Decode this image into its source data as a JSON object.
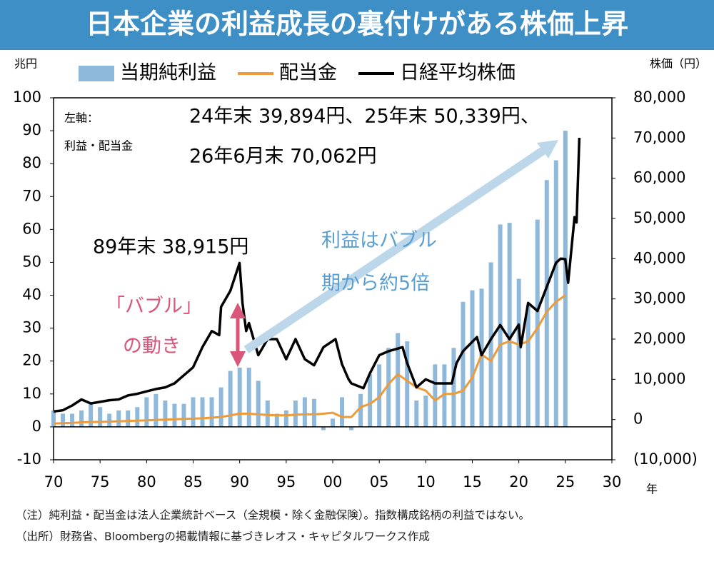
{
  "chart_data": {
    "type": "bar-line",
    "title": "日本企業の利益成長の裏付けがある株価上昇",
    "y_label": "兆円",
    "y2_label": "株価（円）",
    "x_label": "年",
    "xlim": [
      1970,
      2030
    ],
    "xticks": [
      {
        "value": 1970,
        "label": "70"
      },
      {
        "value": 1975,
        "label": "75"
      },
      {
        "value": 1980,
        "label": "80"
      },
      {
        "value": 1985,
        "label": "85"
      },
      {
        "value": 1990,
        "label": "90"
      },
      {
        "value": 1995,
        "label": "95"
      },
      {
        "value": 2000,
        "label": "00"
      },
      {
        "value": 2005,
        "label": "05"
      },
      {
        "value": 2010,
        "label": "10"
      },
      {
        "value": 2015,
        "label": "15"
      },
      {
        "value": 2020,
        "label": "20"
      },
      {
        "value": 2025,
        "label": "25"
      },
      {
        "value": 2030,
        "label": "30"
      }
    ],
    "ylim": [
      -10,
      100
    ],
    "yticks": [
      -10,
      0,
      10,
      20,
      30,
      40,
      50,
      60,
      70,
      80,
      90,
      100
    ],
    "y2lim": [
      -10000,
      80000
    ],
    "y2ticks": [
      {
        "value": -10000,
        "label": "(10,000)"
      },
      0,
      {
        "value": 10000,
        "label": "10,000"
      },
      {
        "value": 20000,
        "label": "20,000"
      },
      {
        "value": 30000,
        "label": "30,000"
      },
      {
        "value": 40000,
        "label": "40,000"
      },
      {
        "value": 50000,
        "label": "50,000"
      },
      {
        "value": 60000,
        "label": "60,000"
      },
      {
        "value": 70000,
        "label": "70,000"
      },
      {
        "value": 80000,
        "label": "80,000"
      }
    ],
    "series": [
      {
        "name": "当期純利益",
        "kind": "bar",
        "color": "#8fb9db",
        "x": [
          1970,
          1971,
          1972,
          1973,
          1974,
          1975,
          1976,
          1977,
          1978,
          1979,
          1980,
          1981,
          1982,
          1983,
          1984,
          1985,
          1986,
          1987,
          1988,
          1989,
          1990,
          1991,
          1992,
          1993,
          1994,
          1995,
          1996,
          1997,
          1998,
          1999,
          2000,
          2001,
          2002,
          2003,
          2004,
          2005,
          2006,
          2007,
          2008,
          2009,
          2010,
          2011,
          2012,
          2013,
          2014,
          2015,
          2016,
          2017,
          2018,
          2019,
          2020,
          2021,
          2022,
          2023,
          2024,
          2025
        ],
        "values": [
          5,
          4,
          4,
          5,
          7,
          6,
          4,
          5,
          5,
          6,
          9,
          10,
          8,
          7,
          7,
          9,
          9,
          9,
          12,
          17,
          18,
          18,
          14,
          8,
          4,
          5,
          8,
          9,
          8.5,
          -1,
          2.5,
          9,
          -1,
          10,
          16,
          19,
          24,
          28.5,
          26,
          8,
          9.5,
          19,
          19,
          24,
          38,
          41.5,
          42,
          50,
          61.5,
          62,
          45,
          37,
          63,
          75,
          81,
          90
        ]
      },
      {
        "name": "配当金",
        "kind": "line",
        "color": "#ed9a3a",
        "x": [
          1970,
          1971,
          1972,
          1973,
          1974,
          1975,
          1976,
          1977,
          1978,
          1979,
          1980,
          1981,
          1982,
          1983,
          1984,
          1985,
          1986,
          1987,
          1988,
          1989,
          1990,
          1991,
          1992,
          1993,
          1994,
          1995,
          1996,
          1997,
          1998,
          1999,
          2000,
          2001,
          2002,
          2003,
          2004,
          2005,
          2006,
          2007,
          2008,
          2009,
          2010,
          2011,
          2012,
          2013,
          2014,
          2015,
          2016,
          2017,
          2018,
          2019,
          2020,
          2021,
          2022,
          2023,
          2024,
          2025
        ],
        "values": [
          1,
          1.1,
          1.2,
          1.4,
          1.5,
          1.5,
          1.6,
          1.7,
          1.8,
          1.9,
          2,
          2.1,
          2.2,
          2.3,
          2.4,
          2.5,
          2.6,
          2.8,
          3,
          3.5,
          4,
          4,
          3.8,
          3.6,
          3.5,
          3.5,
          3.7,
          3.8,
          3.8,
          4,
          4.3,
          3,
          3,
          6,
          7,
          9,
          13,
          16,
          14,
          12,
          11,
          8,
          10,
          10,
          11,
          15,
          22,
          20,
          25,
          26,
          25,
          26,
          30,
          35,
          38,
          40
        ]
      },
      {
        "name": "日経平均株価",
        "kind": "line",
        "axis": "y2",
        "color": "#000000",
        "x": [
          1970,
          1971,
          1972,
          1973,
          1974,
          1975,
          1976,
          1977,
          1978,
          1979,
          1980,
          1981,
          1982,
          1983,
          1984,
          1985,
          1986,
          1987,
          1987.8,
          1988,
          1989,
          1989.99,
          1990.3,
          1990.7,
          1991,
          1992,
          1993,
          1994,
          1995,
          1996,
          1997,
          1998,
          1999,
          2000.3,
          2000.99,
          2001.7,
          2002,
          2003.3,
          2004,
          2005,
          2006,
          2007.5,
          2008,
          2009,
          2010,
          2011,
          2012.8,
          2013.3,
          2014,
          2015.5,
          2016,
          2017,
          2018,
          2018.99,
          2019.99,
          2020.2,
          2021,
          2022,
          2023,
          2024,
          2024.5,
          2024.99,
          2025.3,
          2025.99,
          2026.2,
          2026.5
        ],
        "values": [
          2000,
          2300,
          3500,
          5000,
          4000,
          4400,
          4800,
          5000,
          6000,
          6400,
          7000,
          7600,
          8000,
          9000,
          11000,
          13000,
          18000,
          22000,
          21000,
          28000,
          32000,
          38915,
          29000,
          22000,
          24000,
          16000,
          20000,
          20000,
          15000,
          20000,
          15000,
          13500,
          18000,
          20000,
          13800,
          10000,
          9000,
          7800,
          11500,
          16000,
          17000,
          18000,
          14000,
          8000,
          10000,
          9000,
          9000,
          14000,
          17000,
          20500,
          16000,
          20000,
          23500,
          20000,
          23600,
          18000,
          29000,
          27000,
          33000,
          39000,
          40000,
          39894,
          34000,
          50339,
          49000,
          70062
        ]
      }
    ],
    "legend": "top",
    "annotations": [
      "左軸：",
      "利益・配当金",
      "24年末 39,894円、25年末 50,339円、",
      "26年6月末 70,062円",
      "89年末 38,915円",
      "利益はバブル",
      "期から約5倍",
      "「バブル」",
      "の動き"
    ],
    "notes": [
      "（注）純利益・配当金は法人企業統計ベース（全規模・除く金融保険）。指数構成銘柄の利益ではない。",
      "（出所）財務省、Bloombergの掲載情報に基づきレオス・キャピタルワークス作成"
    ]
  }
}
